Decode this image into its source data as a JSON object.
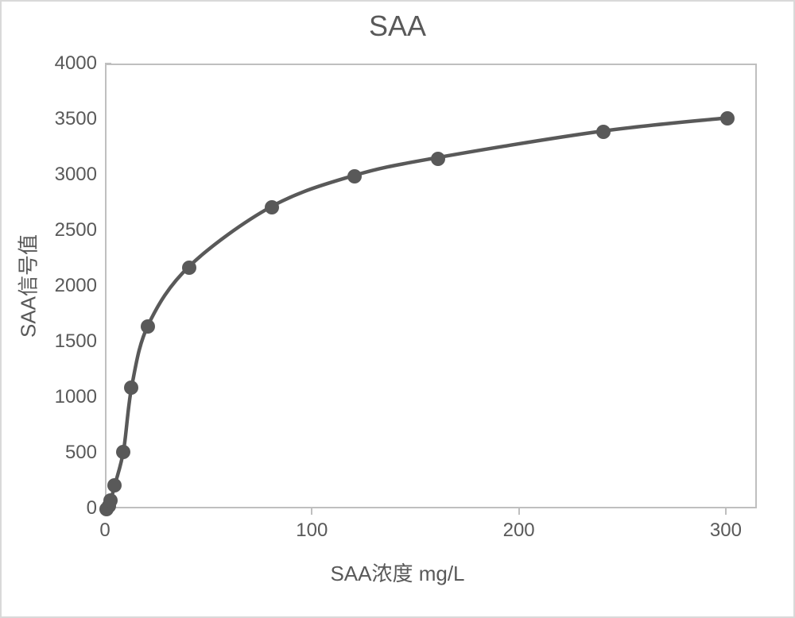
{
  "chart": {
    "type": "line",
    "title": "SAA",
    "title_fontsize": 36,
    "title_color": "#595959",
    "xlabel": "SAA浓度 mg/L",
    "ylabel": "SAA信号值",
    "label_fontsize": 26,
    "label_color": "#595959",
    "xlim": [
      0,
      315
    ],
    "ylim": [
      0,
      4000
    ],
    "x_ticks": [
      0,
      100,
      200,
      300
    ],
    "y_ticks": [
      0,
      500,
      1000,
      1500,
      2000,
      2500,
      3000,
      3500,
      4000
    ],
    "tick_fontsize": 24,
    "tick_color": "#595959",
    "border_color": "#bfbfbf",
    "background_color": "#ffffff",
    "line_color": "#595959",
    "line_width": 4.5,
    "marker_color": "#595959",
    "marker_size": 18,
    "series": {
      "x": [
        0,
        1,
        2,
        4,
        8,
        12,
        20,
        40,
        80,
        120,
        160,
        240,
        300
      ],
      "y": [
        6,
        36,
        84,
        218,
        518,
        1100,
        1650,
        2180,
        2720,
        3000,
        3160,
        3400,
        3520
      ]
    }
  }
}
